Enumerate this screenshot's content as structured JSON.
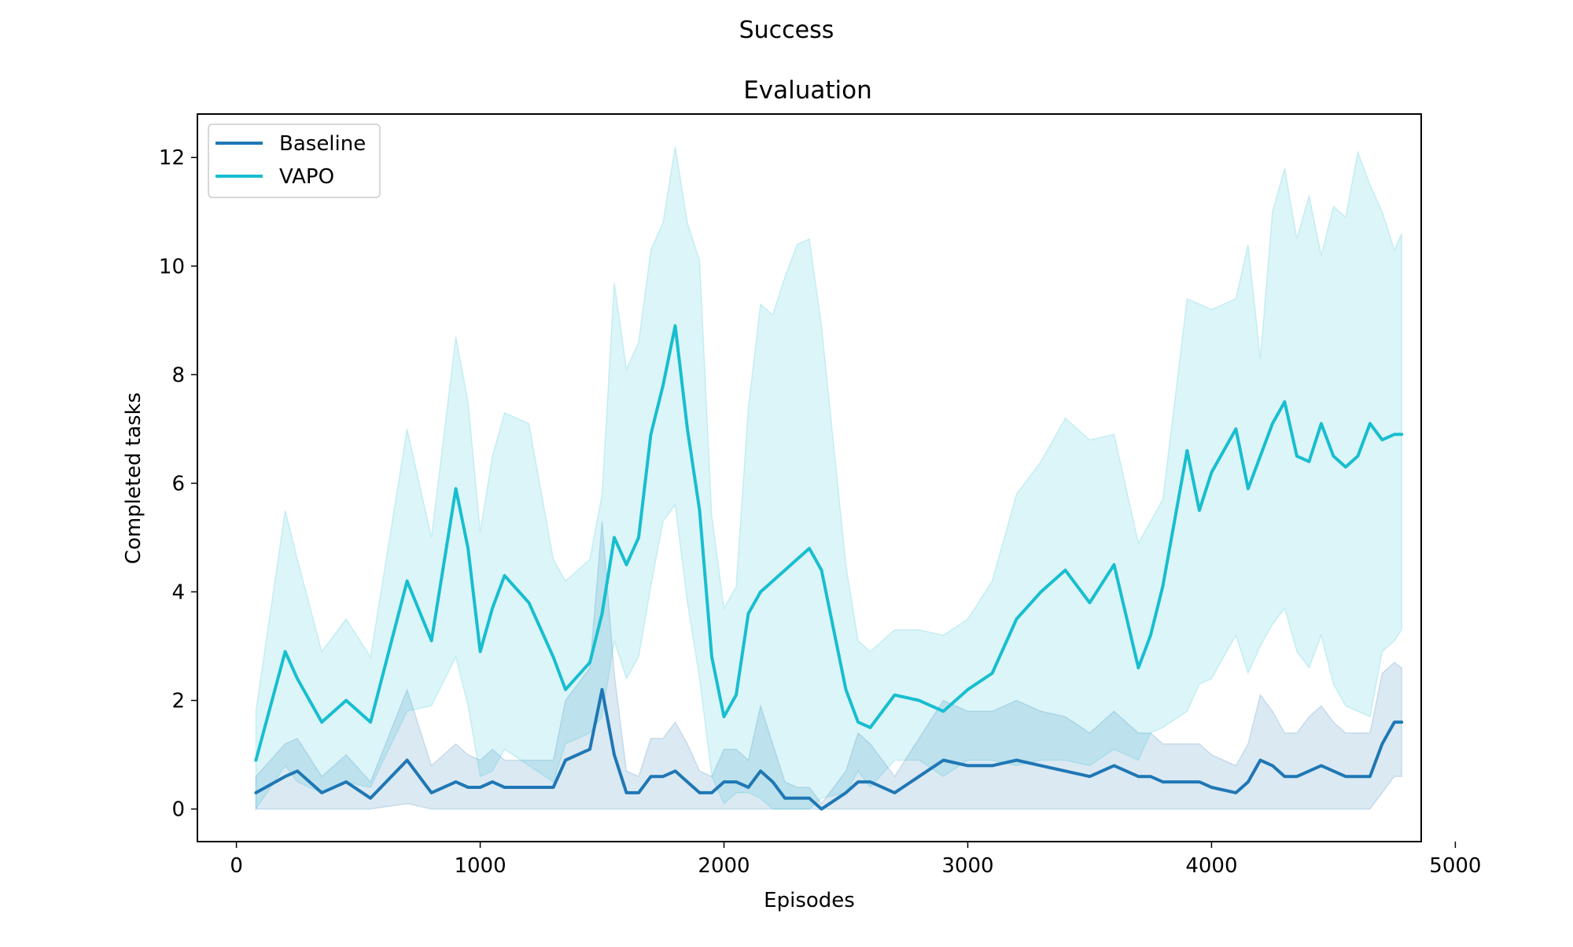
{
  "figure": {
    "suptitle": "Success"
  },
  "chart_data": {
    "type": "line",
    "title": "Evaluation",
    "xlabel": "Episodes",
    "ylabel": "Completed tasks",
    "xlim": [
      -160,
      4860
    ],
    "ylim": [
      -0.6,
      12.8
    ],
    "xticks": [
      0,
      1000,
      2000,
      3000,
      4000,
      5000
    ],
    "yticks": [
      0,
      2,
      4,
      6,
      8,
      10,
      12
    ],
    "grid": false,
    "legend_placement": "upper-left",
    "x": [
      80,
      200,
      250,
      350,
      450,
      550,
      700,
      800,
      900,
      950,
      1000,
      1050,
      1100,
      1200,
      1300,
      1350,
      1450,
      1500,
      1550,
      1600,
      1650,
      1700,
      1750,
      1800,
      1850,
      1900,
      1950,
      2000,
      2050,
      2100,
      2150,
      2200,
      2250,
      2300,
      2350,
      2400,
      2500,
      2550,
      2600,
      2700,
      2800,
      2900,
      3000,
      3100,
      3200,
      3300,
      3400,
      3500,
      3600,
      3700,
      3750,
      3800,
      3900,
      3950,
      4000,
      4100,
      4150,
      4200,
      4250,
      4300,
      4350,
      4400,
      4450,
      4500,
      4550,
      4600,
      4650,
      4700,
      4750,
      4780
    ],
    "series": [
      {
        "name": "Baseline",
        "color": "#1f77b4",
        "values": [
          0.3,
          0.6,
          0.7,
          0.3,
          0.5,
          0.2,
          0.9,
          0.3,
          0.5,
          0.4,
          0.4,
          0.5,
          0.4,
          0.4,
          0.4,
          0.9,
          1.1,
          2.2,
          1.0,
          0.3,
          0.3,
          0.6,
          0.6,
          0.7,
          0.5,
          0.3,
          0.3,
          0.5,
          0.5,
          0.4,
          0.7,
          0.5,
          0.2,
          0.2,
          0.2,
          0.0,
          0.3,
          0.5,
          0.5,
          0.3,
          0.6,
          0.9,
          0.8,
          0.8,
          0.9,
          0.8,
          0.7,
          0.6,
          0.8,
          0.6,
          0.6,
          0.5,
          0.5,
          0.5,
          0.4,
          0.3,
          0.5,
          0.9,
          0.8,
          0.6,
          0.6,
          0.7,
          0.8,
          0.7,
          0.6,
          0.6,
          0.6,
          1.2,
          1.6,
          1.6
        ],
        "lower": [
          0.0,
          0.0,
          0.0,
          0.0,
          0.0,
          0.0,
          0.1,
          0.0,
          0.0,
          0.0,
          0.0,
          0.0,
          0.0,
          0.0,
          0.0,
          0.0,
          0.0,
          0.0,
          0.0,
          0.0,
          0.0,
          0.0,
          0.0,
          0.0,
          0.0,
          0.0,
          0.0,
          0.0,
          0.0,
          0.0,
          0.0,
          0.0,
          0.0,
          0.0,
          0.0,
          0.0,
          0.0,
          0.0,
          0.0,
          0.0,
          0.0,
          0.0,
          0.0,
          0.0,
          0.0,
          0.0,
          0.0,
          0.0,
          0.0,
          0.0,
          0.0,
          0.0,
          0.0,
          0.0,
          0.0,
          0.0,
          0.0,
          0.0,
          0.0,
          0.0,
          0.0,
          0.0,
          0.0,
          0.0,
          0.0,
          0.0,
          0.0,
          0.3,
          0.6,
          0.6
        ],
        "upper": [
          0.6,
          1.2,
          1.3,
          0.6,
          1.0,
          0.5,
          2.2,
          0.8,
          1.2,
          1.0,
          0.9,
          1.1,
          0.9,
          0.9,
          0.9,
          2.0,
          2.6,
          5.3,
          2.5,
          0.7,
          0.6,
          1.3,
          1.3,
          1.6,
          1.2,
          0.7,
          0.6,
          1.1,
          1.1,
          0.9,
          1.9,
          1.2,
          0.5,
          0.4,
          0.4,
          0.1,
          0.7,
          1.4,
          1.2,
          0.6,
          1.3,
          2.0,
          1.8,
          1.8,
          2.0,
          1.8,
          1.7,
          1.4,
          1.8,
          1.4,
          1.4,
          1.2,
          1.2,
          1.2,
          1.0,
          0.8,
          1.2,
          2.1,
          1.8,
          1.4,
          1.4,
          1.7,
          1.9,
          1.6,
          1.4,
          1.4,
          1.4,
          2.5,
          2.7,
          2.6
        ]
      },
      {
        "name": "VAPO",
        "color": "#17becf",
        "values": [
          0.9,
          2.9,
          2.4,
          1.6,
          2.0,
          1.6,
          4.2,
          3.1,
          5.9,
          4.8,
          2.9,
          3.7,
          4.3,
          3.8,
          2.8,
          2.2,
          2.7,
          3.6,
          5.0,
          4.5,
          5.0,
          6.9,
          7.8,
          8.9,
          7.0,
          5.5,
          2.8,
          1.7,
          2.1,
          3.6,
          4.0,
          4.2,
          4.4,
          4.6,
          4.8,
          4.4,
          2.2,
          1.6,
          1.5,
          2.1,
          2.0,
          1.8,
          2.2,
          2.5,
          3.5,
          4.0,
          4.4,
          3.8,
          4.5,
          2.6,
          3.2,
          4.1,
          6.6,
          5.5,
          6.2,
          7.0,
          5.9,
          6.5,
          7.1,
          7.5,
          6.5,
          6.4,
          7.1,
          6.5,
          6.3,
          6.5,
          7.1,
          6.8,
          6.9,
          6.9
        ],
        "lower": [
          0.0,
          0.8,
          0.5,
          0.3,
          0.5,
          0.4,
          1.8,
          1.9,
          2.8,
          1.9,
          0.6,
          0.7,
          1.1,
          0.8,
          0.5,
          1.2,
          1.4,
          1.7,
          3.1,
          2.4,
          2.8,
          4.1,
          5.3,
          5.6,
          3.8,
          2.4,
          0.6,
          0.1,
          0.3,
          0.3,
          0.2,
          0.0,
          0.0,
          0.0,
          0.0,
          0.2,
          0.3,
          0.7,
          0.4,
          0.9,
          0.9,
          0.6,
          0.9,
          0.9,
          0.8,
          0.9,
          0.9,
          0.8,
          1.1,
          0.9,
          1.4,
          1.5,
          1.8,
          2.3,
          2.4,
          3.2,
          2.5,
          3.0,
          3.4,
          3.7,
          2.9,
          2.6,
          3.2,
          2.3,
          1.9,
          1.8,
          1.7,
          2.9,
          3.1,
          3.3
        ],
        "upper": [
          1.8,
          5.5,
          4.6,
          2.9,
          3.5,
          2.8,
          7.0,
          5.0,
          8.7,
          7.5,
          5.1,
          6.5,
          7.3,
          7.1,
          4.6,
          4.2,
          4.6,
          5.8,
          9.7,
          8.1,
          8.6,
          10.3,
          10.8,
          12.2,
          10.8,
          10.1,
          5.4,
          3.7,
          4.1,
          7.4,
          9.3,
          9.1,
          9.8,
          10.4,
          10.5,
          8.9,
          4.5,
          3.1,
          2.9,
          3.3,
          3.3,
          3.2,
          3.5,
          4.2,
          5.8,
          6.4,
          7.2,
          6.8,
          6.9,
          4.9,
          5.3,
          5.7,
          9.4,
          9.3,
          9.2,
          9.4,
          10.4,
          8.3,
          11.0,
          11.8,
          10.5,
          11.3,
          10.2,
          11.1,
          10.9,
          12.1,
          11.5,
          11.0,
          10.3,
          10.6
        ]
      }
    ]
  }
}
